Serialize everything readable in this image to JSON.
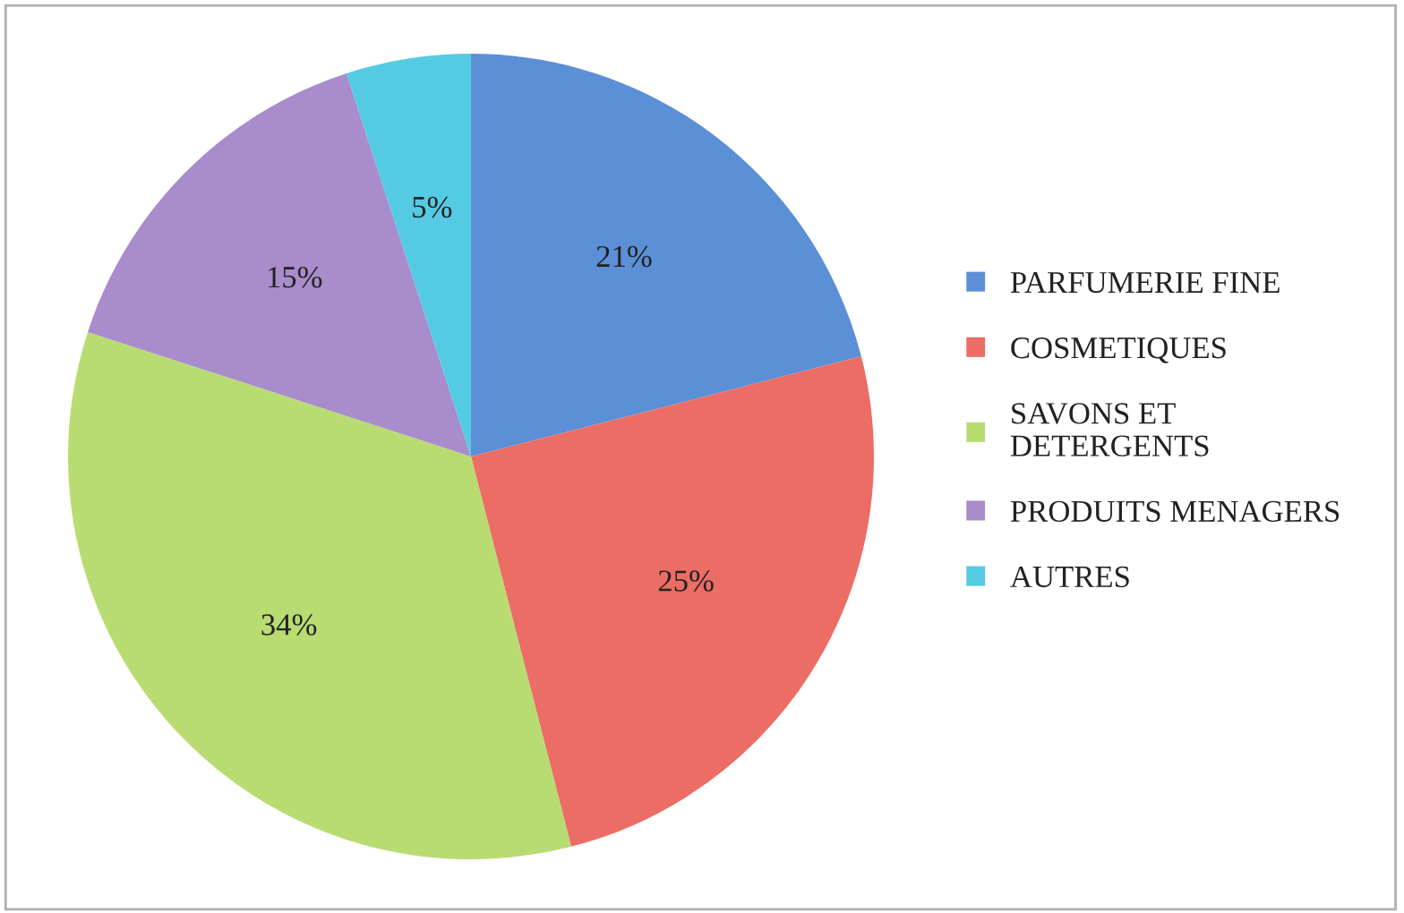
{
  "chart_data": {
    "type": "pie",
    "categories": [
      "PARFUMERIE FINE",
      "COSMETIQUES",
      "SAVONS ET\nDETERGENTS",
      "PRODUITS MENAGERS",
      "AUTRES"
    ],
    "values": [
      21,
      25,
      34,
      15,
      5
    ],
    "colors": [
      "#5b8fd6",
      "#ec6d65",
      "#b8dc72",
      "#a88ccb",
      "#55cbe3"
    ],
    "value_labels": [
      "21%",
      "25%",
      "34%",
      "15%",
      "5%"
    ],
    "legend": "right"
  }
}
